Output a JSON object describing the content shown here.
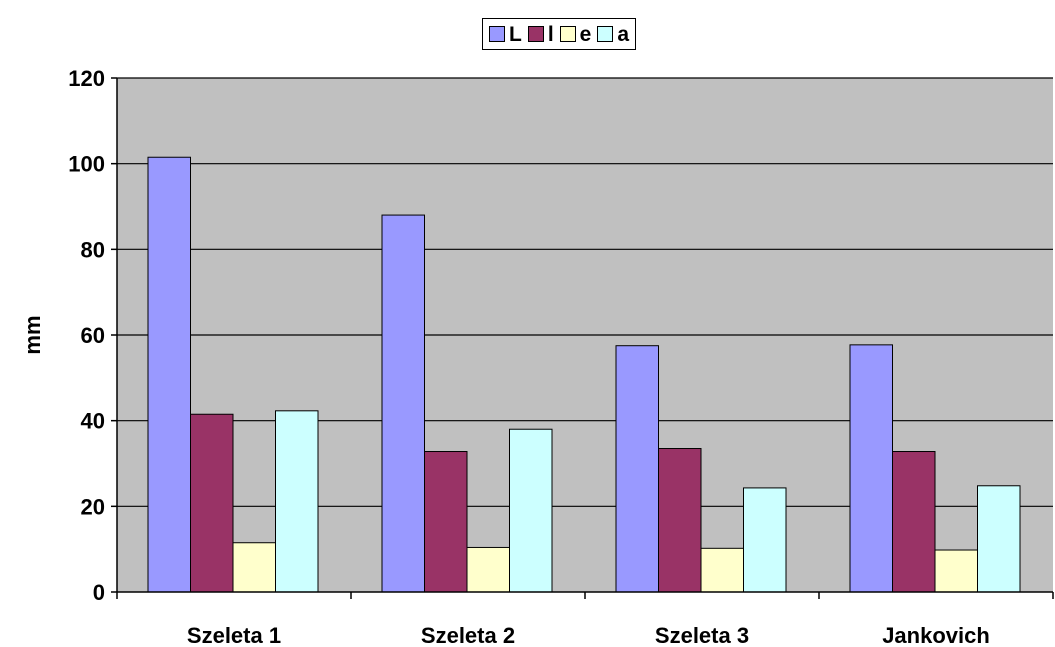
{
  "chart_data": {
    "type": "bar",
    "title": "",
    "xlabel": "",
    "ylabel": "mm",
    "ylim": [
      0,
      120
    ],
    "yticks": [
      0,
      20,
      40,
      60,
      80,
      100,
      120
    ],
    "grid": true,
    "legend_position": "top-center",
    "plot_background": "#c0c0c0",
    "categories": [
      "Szeleta 1",
      "Szeleta 2",
      "Szeleta 3",
      "Jankovich"
    ],
    "series": [
      {
        "name": "L",
        "color": "#9999ff",
        "values": [
          101.5,
          88,
          57.5,
          57.7
        ]
      },
      {
        "name": "l",
        "color": "#993366",
        "values": [
          41.5,
          32.8,
          33.5,
          32.8
        ]
      },
      {
        "name": "e",
        "color": "#ffffcc",
        "values": [
          11.5,
          10.4,
          10.2,
          9.8
        ]
      },
      {
        "name": "a",
        "color": "#ccffff",
        "values": [
          42.3,
          38,
          24.3,
          24.8
        ]
      }
    ]
  }
}
